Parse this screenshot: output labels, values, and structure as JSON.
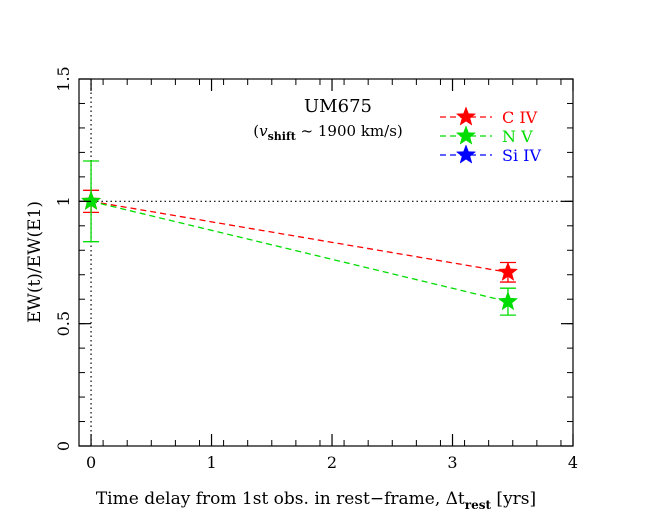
{
  "chart_data": {
    "type": "line",
    "title": "UM675",
    "subtitle": {
      "open": "(",
      "v": "v",
      "v_sub": "shift",
      "rest": " ~ 1900 km/s)"
    },
    "xlabel": {
      "main": "Time delay from 1st obs. in rest−frame, Δt",
      "sub": "rest",
      "tail": " [yrs]"
    },
    "ylabel": "EW(t)/EW(E1)",
    "xlim": [
      -0.1,
      4
    ],
    "ylim": [
      0,
      1.5
    ],
    "xticks": [
      0,
      1,
      2,
      3,
      4
    ],
    "xtick_labels": [
      "0",
      "1",
      "2",
      "3",
      "4"
    ],
    "yticks": [
      0,
      0.5,
      1,
      1.5
    ],
    "ytick_labels": [
      "0",
      "0.5",
      "1",
      "1.5"
    ],
    "reference_lines": {
      "y": 1,
      "x": 0
    },
    "series": [
      {
        "name": "C IV",
        "color": "#ff0000",
        "x": [
          0,
          3.46
        ],
        "y": [
          1.0,
          0.71
        ],
        "yerr": [
          0.045,
          0.04
        ]
      },
      {
        "name": "N V",
        "color": "#00dd00",
        "x": [
          0,
          3.46
        ],
        "y": [
          1.0,
          0.59
        ],
        "yerr": [
          0.165,
          0.055
        ]
      },
      {
        "name": "Si IV",
        "color": "#0000ff",
        "x": [],
        "y": [],
        "yerr": []
      }
    ],
    "legend_position": "top-right"
  }
}
